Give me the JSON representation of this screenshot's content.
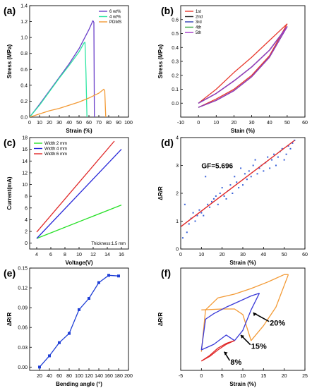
{
  "chart_data": [
    {
      "panel": "(a)",
      "type": "line",
      "xlabel": "Strain (%)",
      "ylabel": "Stress (MPa)",
      "xlim": [
        0,
        100
      ],
      "ylim": [
        0,
        1.4
      ],
      "xticks": [
        0,
        10,
        20,
        30,
        40,
        50,
        60,
        70,
        80,
        90,
        100
      ],
      "yticks": [
        0.0,
        0.2,
        0.4,
        0.6,
        0.8,
        1.0,
        1.2,
        1.4
      ],
      "legend_position": "top-right",
      "series": [
        {
          "name": "6 wt%",
          "color": "#6a3fc9",
          "x": [
            0,
            10,
            20,
            30,
            40,
            50,
            60,
            64,
            65,
            65.5
          ],
          "y": [
            0,
            0.16,
            0.33,
            0.5,
            0.67,
            0.86,
            1.1,
            1.21,
            1.19,
            0
          ]
        },
        {
          "name": "4 wt%",
          "color": "#2ee6a3",
          "x": [
            0,
            10,
            20,
            30,
            40,
            50,
            55,
            56,
            57,
            58
          ],
          "y": [
            0,
            0.15,
            0.32,
            0.49,
            0.65,
            0.82,
            0.93,
            0.94,
            0.55,
            0
          ]
        },
        {
          "name": "PDMS",
          "color": "#f39a35",
          "x": [
            0,
            10,
            20,
            30,
            40,
            50,
            60,
            70,
            75,
            76,
            77
          ],
          "y": [
            0,
            0.04,
            0.08,
            0.11,
            0.15,
            0.19,
            0.24,
            0.3,
            0.35,
            0.33,
            0
          ]
        }
      ]
    },
    {
      "panel": "(b)",
      "type": "line",
      "xlabel": "Stain (%)",
      "ylabel": "Stress (MPa)",
      "xlim": [
        -10,
        60
      ],
      "ylim": [
        -0.1,
        0.7
      ],
      "xticks": [
        -10,
        0,
        10,
        20,
        30,
        40,
        50,
        60
      ],
      "yticks": [
        0.0,
        0.1,
        0.2,
        0.3,
        0.4,
        0.5,
        0.6
      ],
      "legend_position": "top-left",
      "series": [
        {
          "name": "1st",
          "color": "#e83a2e",
          "load_x": [
            0,
            10,
            20,
            30,
            40,
            50
          ],
          "load_y": [
            0.0,
            0.1,
            0.22,
            0.33,
            0.45,
            0.57
          ],
          "unload_x": [
            50,
            40,
            30,
            20,
            10,
            0
          ],
          "unload_y": [
            0.57,
            0.34,
            0.2,
            0.1,
            0.03,
            -0.03
          ]
        },
        {
          "name": "2nd",
          "color": "#2a2a2a",
          "load_x": [
            0,
            10,
            20,
            30,
            40,
            50
          ],
          "load_y": [
            0.0,
            0.07,
            0.16,
            0.26,
            0.38,
            0.55
          ],
          "unload_x": [
            50,
            40,
            30,
            20,
            10,
            0
          ],
          "unload_y": [
            0.55,
            0.33,
            0.19,
            0.09,
            0.02,
            -0.03
          ]
        },
        {
          "name": "3rd",
          "color": "#2f3fb5",
          "load_x": [
            0,
            10,
            20,
            30,
            40,
            50
          ],
          "load_y": [
            0.0,
            0.07,
            0.16,
            0.26,
            0.38,
            0.55
          ],
          "unload_x": [
            50,
            40,
            30,
            20,
            10,
            0
          ],
          "unload_y": [
            0.55,
            0.33,
            0.19,
            0.09,
            0.02,
            -0.03
          ]
        },
        {
          "name": "4th",
          "color": "#2fa33a",
          "load_x": [
            0,
            10,
            20,
            30,
            40,
            50
          ],
          "load_y": [
            0.0,
            0.07,
            0.16,
            0.26,
            0.38,
            0.55
          ],
          "unload_x": [
            50,
            40,
            30,
            20,
            10,
            0
          ],
          "unload_y": [
            0.55,
            0.33,
            0.19,
            0.09,
            0.02,
            -0.03
          ]
        },
        {
          "name": "5th",
          "color": "#a235c7",
          "load_x": [
            0,
            10,
            20,
            30,
            40,
            50
          ],
          "load_y": [
            0.0,
            0.07,
            0.16,
            0.26,
            0.38,
            0.55
          ],
          "unload_x": [
            50,
            40,
            30,
            20,
            10,
            0
          ],
          "unload_y": [
            0.55,
            0.33,
            0.19,
            0.09,
            0.02,
            -0.03
          ]
        }
      ]
    },
    {
      "panel": "(c)",
      "type": "line",
      "xlabel": "Voltage(V)",
      "ylabel": "Current(mA)",
      "xlim": [
        3,
        17
      ],
      "ylim": [
        -1,
        18
      ],
      "xticks": [
        4,
        6,
        8,
        10,
        12,
        14,
        16
      ],
      "yticks": [
        0,
        2,
        4,
        6,
        8,
        10,
        12,
        14,
        16,
        18
      ],
      "legend_position": "top-left",
      "annotation": "Thickness:1.5 mm",
      "series": [
        {
          "name": "Width:2 mm",
          "color": "#28e028",
          "x": [
            4,
            16
          ],
          "y": [
            0.8,
            6.5
          ]
        },
        {
          "name": "Width:4 mm",
          "color": "#2828d8",
          "x": [
            4,
            16
          ],
          "y": [
            0.8,
            16.0
          ]
        },
        {
          "name": "Width:6 mm",
          "color": "#e02828",
          "x": [
            4,
            15
          ],
          "y": [
            1.9,
            17.4
          ]
        }
      ]
    },
    {
      "panel": "(d)",
      "type": "scatter",
      "xlabel": "Strain (%)",
      "ylabel": "ΔR/R",
      "xlim": [
        0,
        60
      ],
      "ylim": [
        0,
        4
      ],
      "xticks": [
        0,
        10,
        20,
        30,
        40,
        50,
        60
      ],
      "yticks": [
        0,
        1,
        2,
        3,
        4
      ],
      "annotation": "GF=5.696",
      "fit": {
        "color": "#e02828",
        "x": [
          0,
          55
        ],
        "y": [
          0.8,
          3.9
        ]
      },
      "points": {
        "color": "#3a62d8",
        "x": [
          1,
          2,
          3,
          4,
          5,
          6,
          7,
          8,
          9,
          10,
          11,
          12,
          13,
          14,
          15,
          16,
          17,
          18,
          19,
          20,
          21,
          22,
          23,
          24,
          25,
          26,
          27,
          28,
          29,
          30,
          31,
          32,
          33,
          34,
          35,
          36,
          37,
          38,
          39,
          40,
          41,
          42,
          43,
          44,
          45,
          46,
          47,
          48,
          49,
          50,
          51,
          52,
          53,
          54,
          55
        ],
        "y": [
          0.4,
          1.6,
          0.6,
          0.9,
          1.1,
          1.3,
          1.0,
          1.2,
          1.4,
          1.3,
          1.2,
          2.6,
          1.6,
          1.5,
          1.7,
          1.8,
          1.9,
          1.6,
          2.0,
          2.2,
          1.9,
          1.8,
          2.1,
          2.3,
          2.0,
          2.6,
          2.4,
          2.2,
          2.9,
          2.3,
          2.7,
          2.5,
          2.8,
          2.6,
          3.0,
          3.2,
          2.7,
          2.9,
          3.0,
          2.8,
          3.1,
          3.3,
          2.9,
          3.2,
          3.4,
          3.0,
          3.3,
          3.5,
          3.6,
          3.2,
          3.4,
          3.7,
          3.6,
          3.8,
          3.9
        ]
      }
    },
    {
      "panel": "(e)",
      "type": "line",
      "xlabel": "Bending angle (°)",
      "ylabel": "ΔR/R",
      "xlim": [
        0,
        200
      ],
      "ylim": [
        -0.005,
        0.15
      ],
      "xticks": [
        20,
        40,
        60,
        80,
        100,
        120,
        140,
        160,
        180,
        200
      ],
      "yticks": [
        0.0,
        0.03,
        0.06,
        0.09,
        0.12,
        0.15
      ],
      "series": [
        {
          "name": "",
          "color": "#1f3fd6",
          "x": [
            20,
            40,
            60,
            80,
            100,
            120,
            140,
            160,
            180
          ],
          "y": [
            0.0,
            0.017,
            0.037,
            0.051,
            0.087,
            0.104,
            0.128,
            0.139,
            0.138
          ]
        }
      ]
    },
    {
      "panel": "(f)",
      "type": "line",
      "xlabel": "Strain (%)",
      "ylabel": "ΔR/R",
      "xlim": [
        -5,
        25
      ],
      "ylim": [
        -0.1,
        1.0
      ],
      "xticks": [
        -5,
        0,
        5,
        10,
        15,
        20,
        25
      ],
      "yticks": [],
      "annotations": [
        "20%",
        "15%",
        "8%"
      ],
      "series": [
        {
          "name": "20%",
          "color": "#f39a35",
          "load_x": [
            0,
            1,
            4,
            8,
            12,
            16,
            20,
            21
          ],
          "load_y": [
            0.1,
            0.55,
            0.68,
            0.72,
            0.78,
            0.85,
            0.93,
            0.93
          ],
          "unload_x": [
            21,
            18,
            15,
            12,
            10,
            8,
            5,
            0
          ],
          "unload_y": [
            0.93,
            0.58,
            0.38,
            0.22,
            0.5,
            0.56,
            0.56,
            0.55
          ]
        },
        {
          "name": "15%",
          "color": "#3a3ad8",
          "load_x": [
            0,
            1,
            3,
            6,
            9,
            12,
            14
          ],
          "load_y": [
            0.12,
            0.45,
            0.51,
            0.58,
            0.64,
            0.7,
            0.73
          ],
          "unload_x": [
            14,
            12,
            10,
            8,
            6,
            3,
            0
          ],
          "unload_y": [
            0.73,
            0.55,
            0.33,
            0.22,
            0.28,
            0.18,
            0.12
          ]
        },
        {
          "name": "8%",
          "color": "#e02828",
          "load_x": [
            0,
            2,
            4,
            6,
            8
          ],
          "load_y": [
            0.0,
            0.05,
            0.12,
            0.18,
            0.22
          ],
          "unload_x": [
            8,
            6,
            4,
            2,
            0
          ],
          "unload_y": [
            0.22,
            0.19,
            0.14,
            0.06,
            0.0
          ]
        }
      ]
    }
  ]
}
